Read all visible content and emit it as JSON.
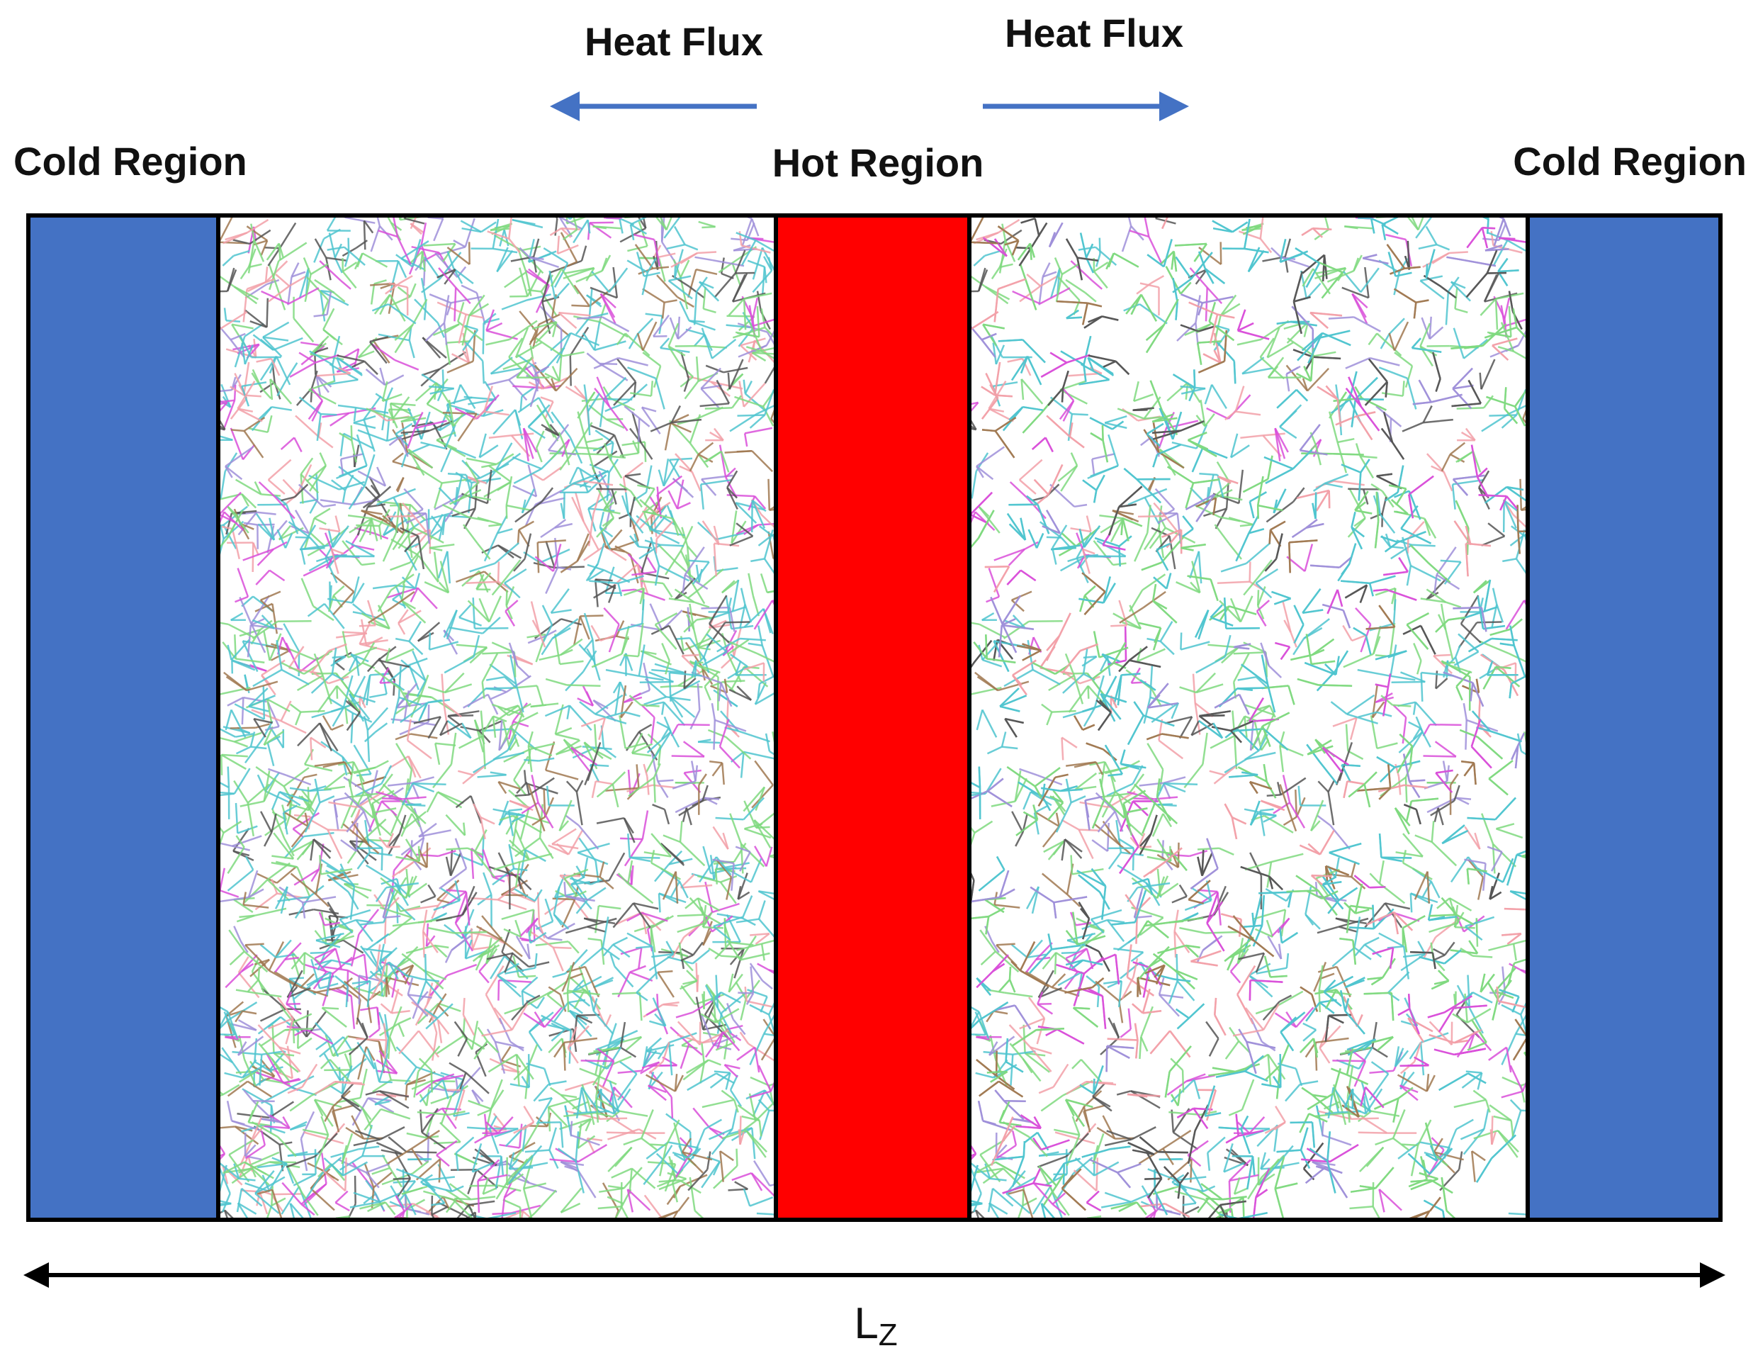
{
  "heat_flux_left": "Heat Flux",
  "heat_flux_right": "Heat Flux",
  "regions": [
    {
      "label": "Cold Region"
    },
    {
      "label": "Hot Region"
    },
    {
      "label": "Cold Region"
    }
  ],
  "dimension": {
    "label": "L",
    "subscript": "Z"
  }
}
